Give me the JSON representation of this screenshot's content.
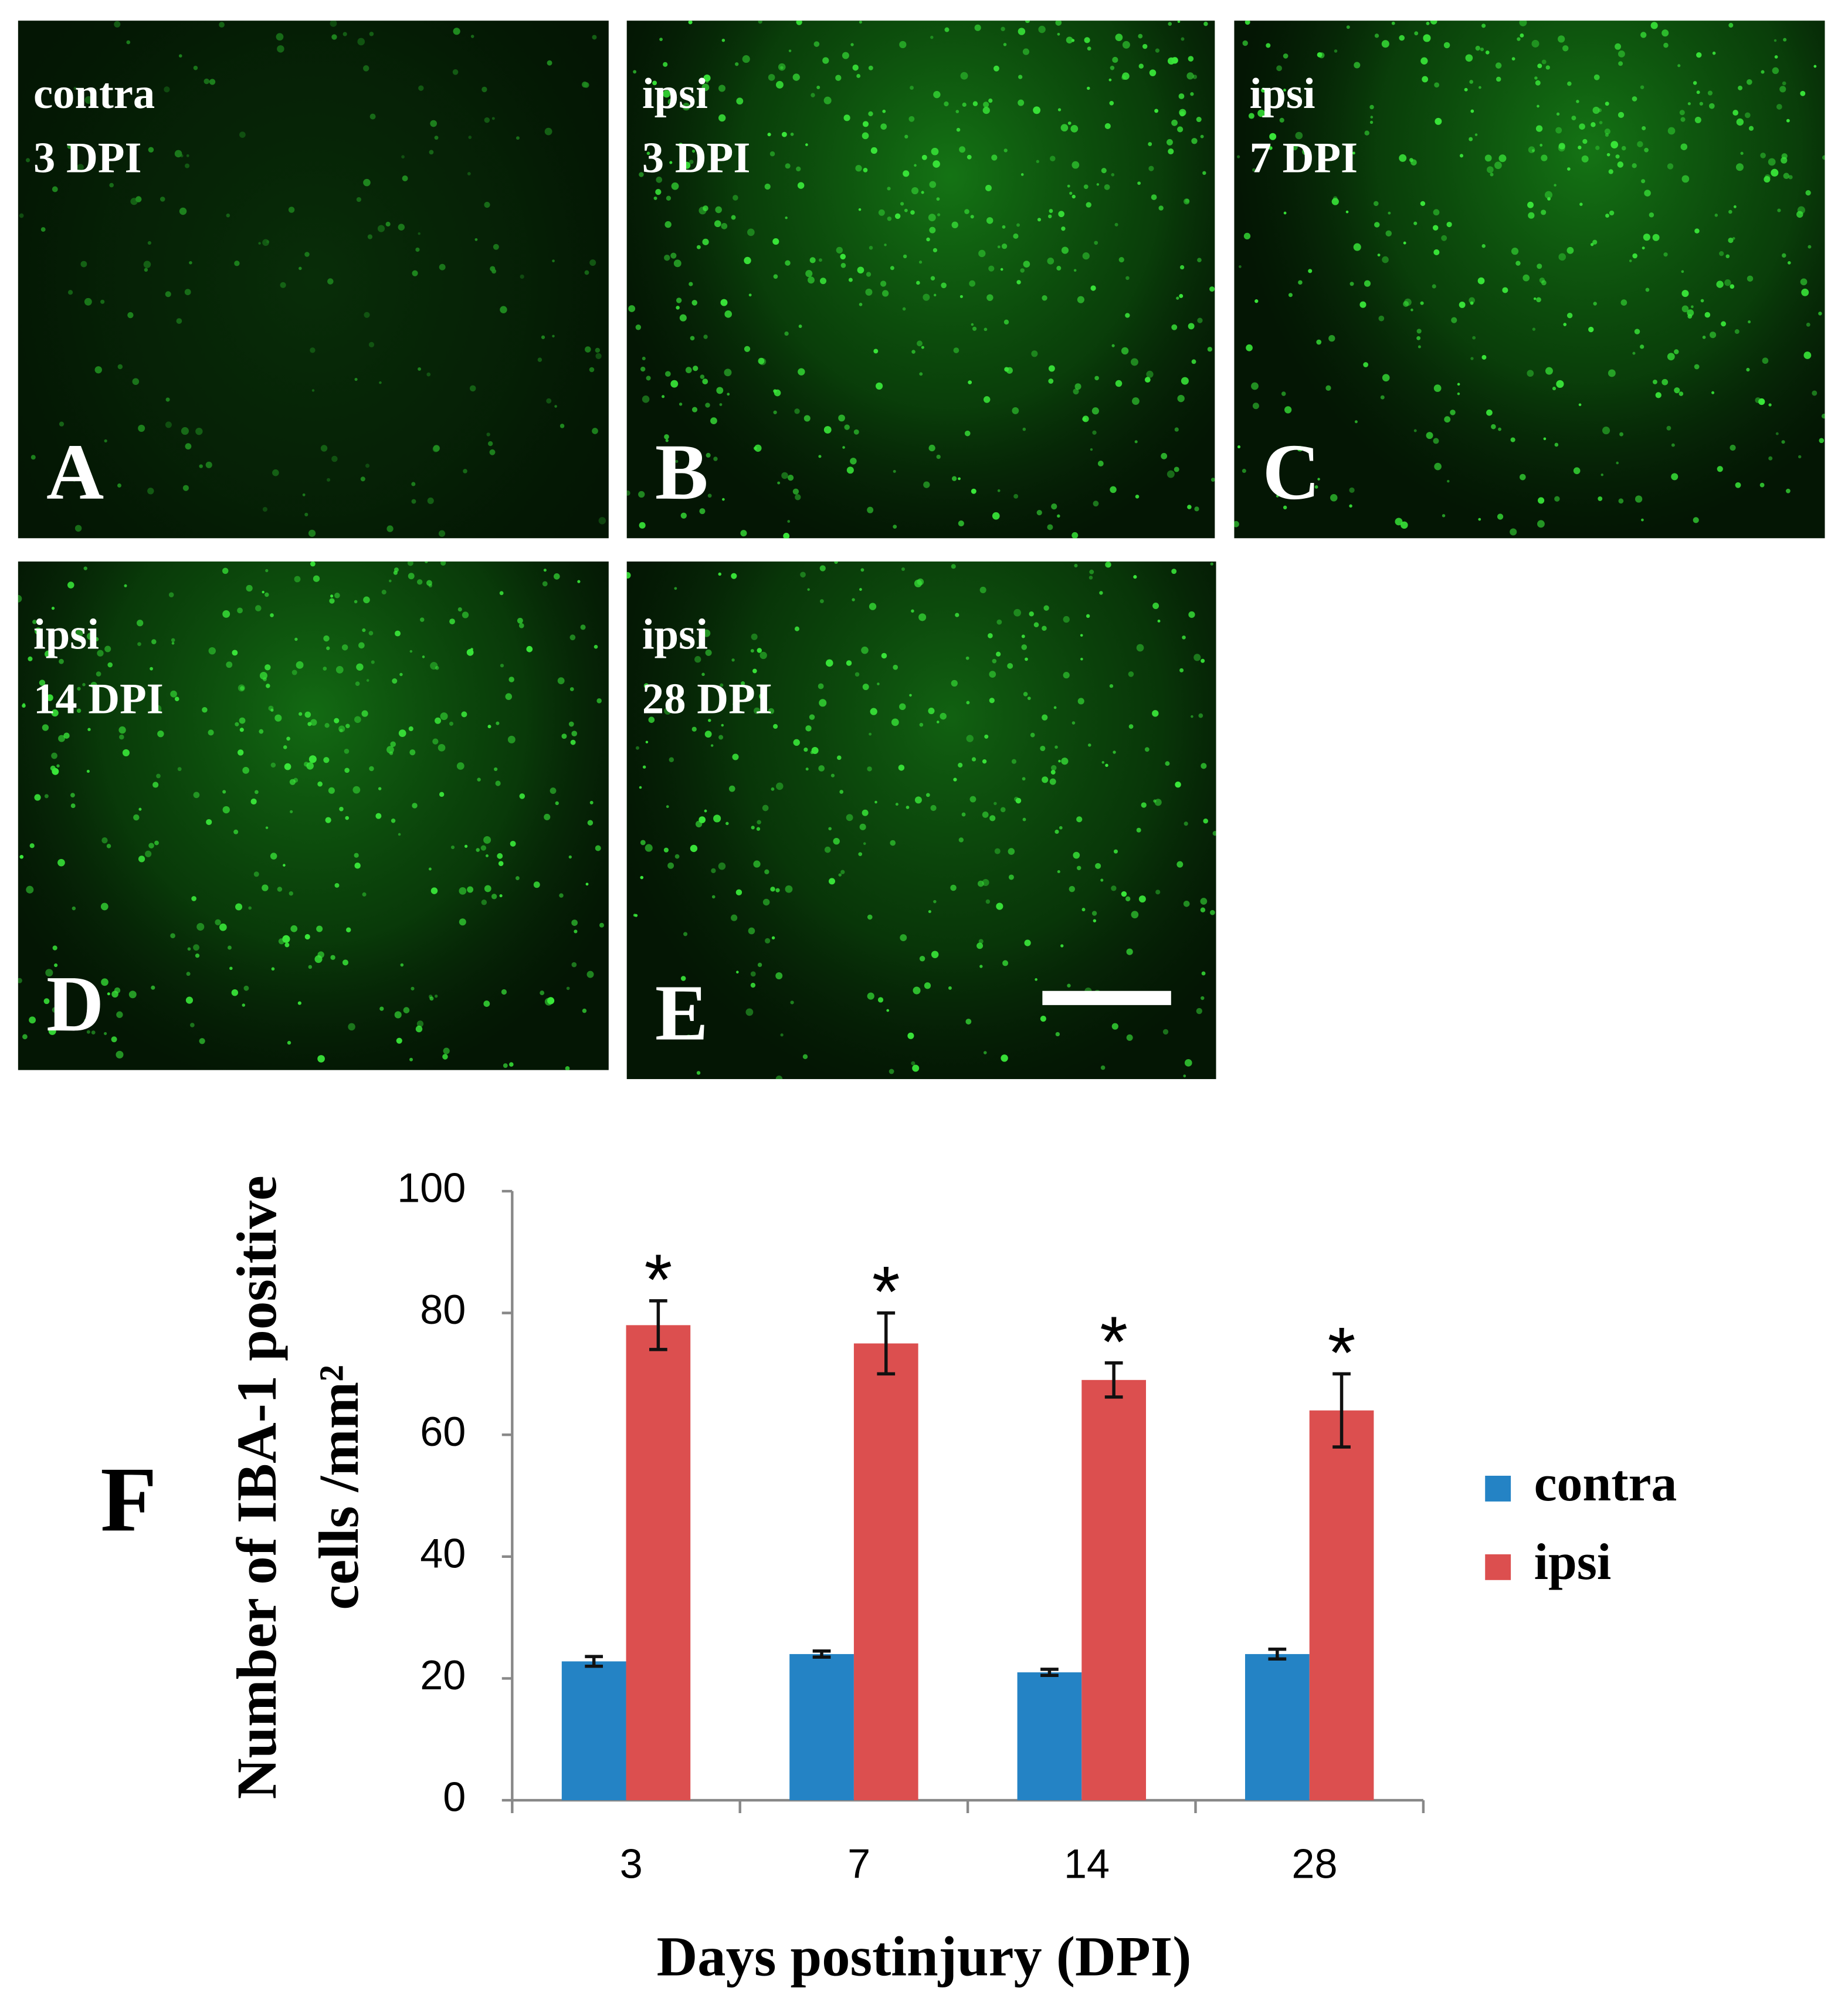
{
  "panels": [
    {
      "letter": "A",
      "lines": [
        "contra",
        "3 DPI"
      ]
    },
    {
      "letter": "B",
      "lines": [
        "ipsi",
        "3 DPI"
      ]
    },
    {
      "letter": "C",
      "lines": [
        "ipsi",
        "7 DPI"
      ]
    },
    {
      "letter": "D",
      "lines": [
        "ipsi",
        "14 DPI"
      ]
    },
    {
      "letter": "E",
      "lines": [
        "ipsi",
        "28 DPI"
      ]
    }
  ],
  "chart_data": {
    "type": "bar",
    "panel_label": "F",
    "ylabel": [
      "Number of IBA-1 positive",
      "cells /mm²"
    ],
    "xlabel": "Days postinjury (DPI)",
    "categories": [
      "3",
      "7",
      "14",
      "28"
    ],
    "series": [
      {
        "name": "contra",
        "color": "#2483c5",
        "values": [
          22.8,
          24,
          21,
          24
        ],
        "errors": [
          0.8,
          0.5,
          0.5,
          0.8
        ]
      },
      {
        "name": "ipsi",
        "color": "#dc4f4f",
        "values": [
          78,
          75,
          69,
          64
        ],
        "errors": [
          4,
          5,
          2.8,
          6
        ],
        "annotations": [
          "*",
          "*",
          "*",
          "*"
        ]
      }
    ],
    "ylim": [
      0,
      100
    ],
    "yticks": [
      0,
      20,
      40,
      60,
      80,
      100
    ],
    "legend": "right"
  }
}
